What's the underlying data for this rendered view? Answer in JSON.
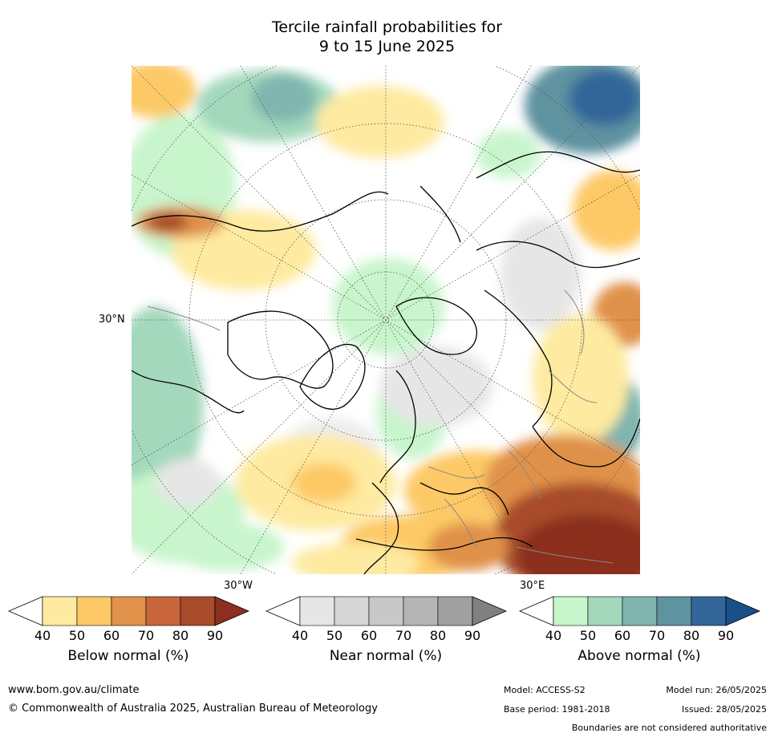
{
  "title": {
    "line1": "Tercile rainfall probabilities for",
    "line2": "9 to 15 June 2025"
  },
  "map": {
    "lat_label": "30°N",
    "lon_labels": [
      "30°W",
      "30°E"
    ]
  },
  "legends": [
    {
      "id": "below",
      "title": "Below normal (%)",
      "ticks": [
        "40",
        "50",
        "60",
        "70",
        "80",
        "90"
      ],
      "colors": [
        "#ffffff",
        "#feeaa0",
        "#fdc966",
        "#e0914a",
        "#c8653a",
        "#a84b2a",
        "#8c2f1e"
      ]
    },
    {
      "id": "near",
      "title": "Near normal (%)",
      "ticks": [
        "40",
        "50",
        "60",
        "70",
        "80",
        "90"
      ],
      "colors": [
        "#ffffff",
        "#e6e6e6",
        "#d6d6d6",
        "#c8c8c8",
        "#b5b5b5",
        "#a0a0a0",
        "#808080"
      ]
    },
    {
      "id": "above",
      "title": "Above normal (%)",
      "ticks": [
        "40",
        "50",
        "60",
        "70",
        "80",
        "90"
      ],
      "colors": [
        "#ffffff",
        "#c8f5cc",
        "#a3d8bc",
        "#7fb5ae",
        "#5e93a0",
        "#336699",
        "#1a4f8a"
      ]
    }
  ],
  "footer": {
    "website": "www.bom.gov.au/climate",
    "copyright": "© Commonwealth of Australia 2025, Australian Bureau of Meteorology",
    "model": "Model: ACCESS-S2",
    "model_run": "Model run: 26/05/2025",
    "base_period": "Base period: 1981-2018",
    "issued": "Issued: 28/05/2025",
    "disclaimer": "Boundaries are not considered authoritative"
  }
}
